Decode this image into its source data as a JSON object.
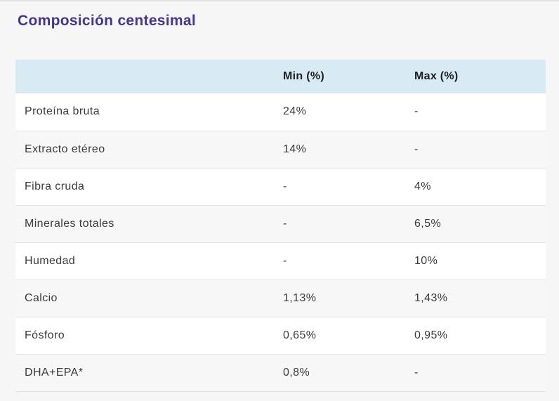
{
  "page": {
    "title": "Composición centesimal"
  },
  "colors": {
    "title_accent": "#45378f",
    "table_header_bg": "#d8ebf5",
    "page_background": "#f6f6f7",
    "row_alt_background": "#f7f7f8",
    "row_separator": "#e4e4e4",
    "body_text": "#3b3b3b",
    "header_text": "#1e1e21"
  },
  "table": {
    "header": {
      "component": "",
      "min": "Min (%)",
      "max": "Max (%)"
    },
    "rows": [
      {
        "label": "Proteína bruta",
        "min": "24%",
        "max": "-"
      },
      {
        "label": "Extracto etéreo",
        "min": "14%",
        "max": "-"
      },
      {
        "label": "Fibra cruda",
        "min": "-",
        "max": "4%"
      },
      {
        "label": "Minerales totales",
        "min": "-",
        "max": "6,5%"
      },
      {
        "label": "Humedad",
        "min": "-",
        "max": "10%"
      },
      {
        "label": "Calcio",
        "min": "1,13%",
        "max": "1,43%"
      },
      {
        "label": "Fósforo",
        "min": "0,65%",
        "max": "0,95%"
      },
      {
        "label": "DHA+EPA*",
        "min": "0,8%",
        "max": "-"
      }
    ]
  }
}
